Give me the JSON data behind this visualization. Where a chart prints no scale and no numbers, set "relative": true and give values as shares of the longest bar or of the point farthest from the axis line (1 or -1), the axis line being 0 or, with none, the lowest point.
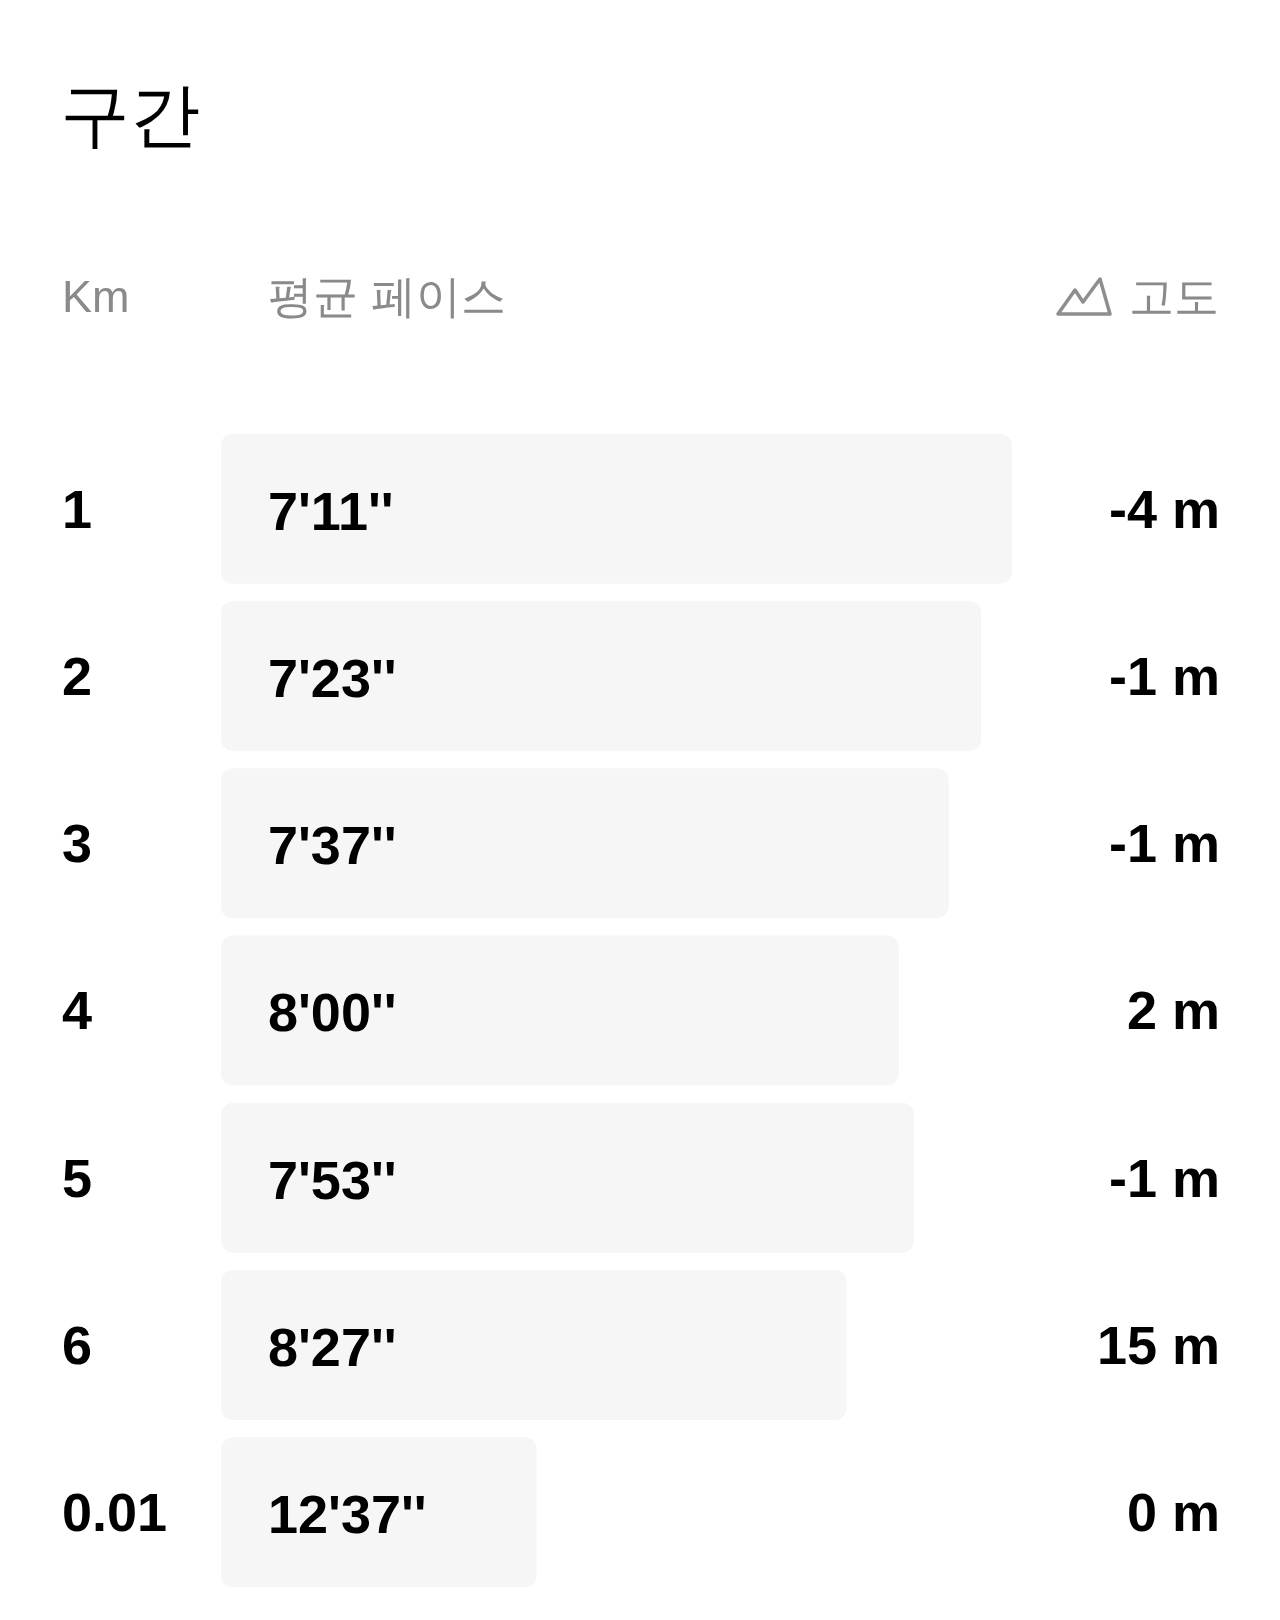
{
  "chart_data": {
    "type": "bar",
    "orientation": "horizontal",
    "relative": true,
    "title": "구간",
    "ylabel": "Km",
    "xlabel": "평균 페이스",
    "y2label": "고도",
    "categories": [
      "1",
      "2",
      "3",
      "4",
      "5",
      "6",
      "0.01"
    ],
    "y2_categories": [
      "-4 m",
      "-1 m",
      "-1 m",
      "2 m",
      "-1 m",
      "15 m",
      "0 m"
    ],
    "values": [
      1,
      0.961,
      0.92,
      0.857,
      0.876,
      0.791,
      0.399
    ],
    "annotations": [
      {
        "text": "7'11''",
        "y": "1"
      },
      {
        "text": "7'23''",
        "y": "2"
      },
      {
        "text": "7'37''",
        "y": "3"
      },
      {
        "text": "8'00''",
        "y": "4"
      },
      {
        "text": "7'53''",
        "y": "5"
      },
      {
        "text": "8'27''",
        "y": "6"
      },
      {
        "text": "12'37''",
        "y": "0.01"
      }
    ],
    "color": "#f6f6f6"
  }
}
